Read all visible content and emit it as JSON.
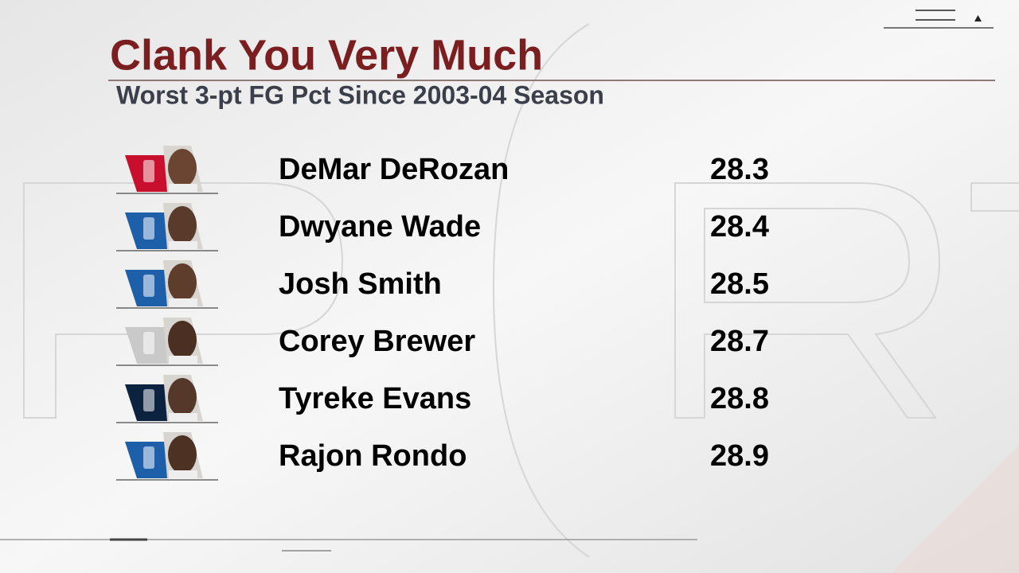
{
  "header": {
    "title": "Clank You Very Much",
    "subtitle": "Worst 3-pt FG Pct Since 2003-04 Season"
  },
  "table": {
    "rows": [
      {
        "name": "DeMar DeRozan",
        "value": 28.3
      },
      {
        "name": "Dwyane Wade",
        "value": 28.4
      },
      {
        "name": "Josh Smith",
        "value": 28.5
      },
      {
        "name": "Corey Brewer",
        "value": 28.7
      },
      {
        "name": "Tyreke Evans",
        "value": 28.8
      },
      {
        "name": "Rajon Rondo",
        "value": 28.9
      }
    ]
  }
}
